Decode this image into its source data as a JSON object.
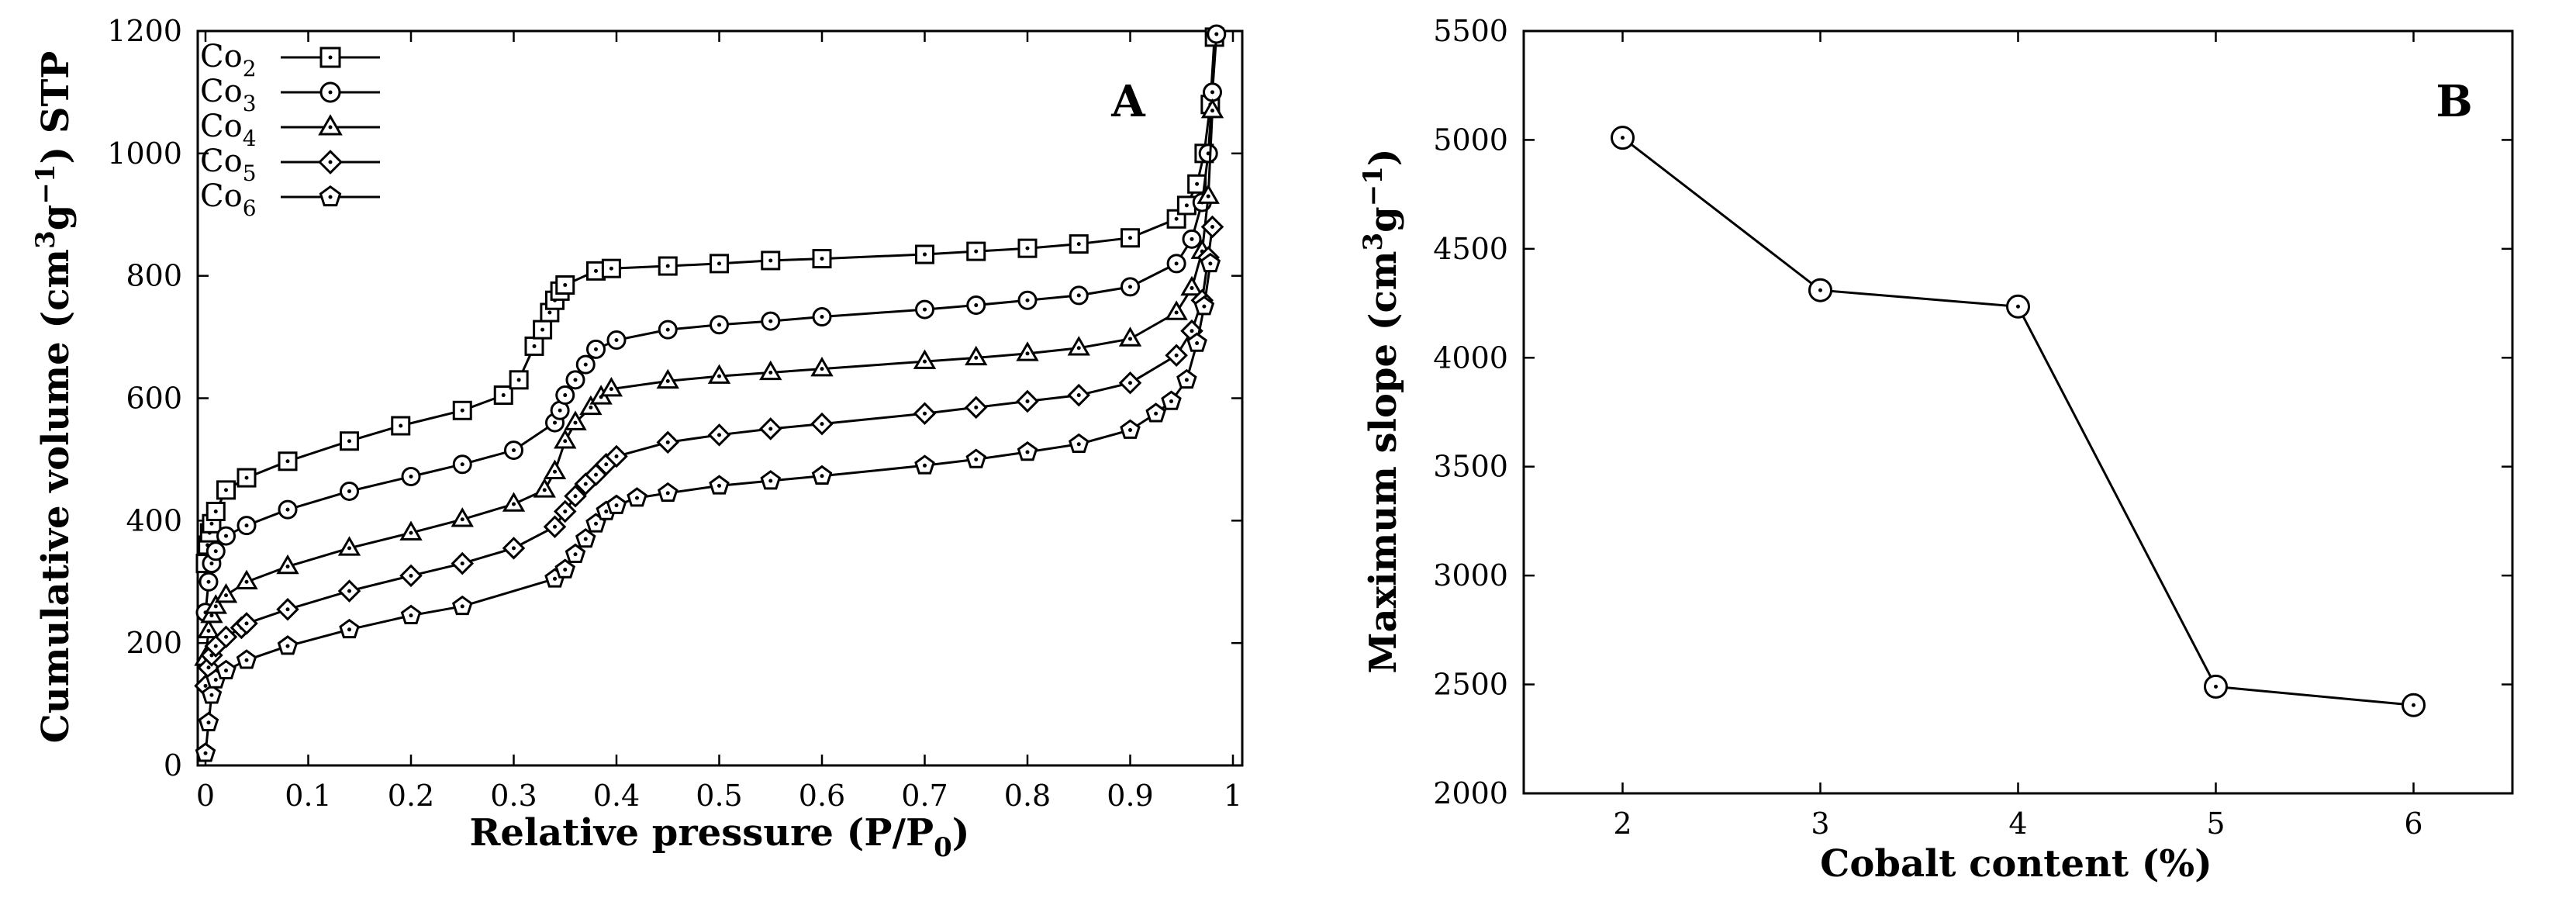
{
  "charts": {
    "A": {
      "panel_label": "A",
      "title_bits": {
        "y_pre": "Cumulative volume (cm",
        "y_sup1": "3",
        "y_mid": "g",
        "y_sup2": "−1",
        "y_post": ") STP",
        "x_pre": "Relative pressure (P/P",
        "x_sub": "0",
        "x_post": ")"
      },
      "x_ticks": [
        "0",
        "0.1",
        "0.2",
        "0.3",
        "0.4",
        "0.5",
        "0.6",
        "0.7",
        "0.8",
        "0.9",
        "1"
      ],
      "y_ticks": [
        "0",
        "200",
        "400",
        "600",
        "800",
        "1000",
        "1200"
      ]
    },
    "B": {
      "panel_label": "B",
      "title_bits": {
        "y_pre": "Maximum slope (cm",
        "y_sup1": "3",
        "y_mid": "g",
        "y_sup2": "−1",
        "y_post": ")",
        "x_full": "Cobalt content (%)"
      },
      "x_ticks": [
        "2",
        "3",
        "4",
        "5",
        "6"
      ],
      "y_ticks": [
        "2000",
        "2500",
        "3000",
        "3500",
        "4000",
        "4500",
        "5000",
        "5500"
      ]
    }
  },
  "chart_data": [
    {
      "type": "line",
      "panel": "A",
      "title": "",
      "xlabel": "Relative pressure (P/P0)",
      "ylabel": "Cumulative volume (cm3g−1) STP",
      "xlim": [
        0,
        1
      ],
      "ylim": [
        0,
        1200
      ],
      "legend_position": "top-left",
      "series": [
        {
          "name": "Co2",
          "sub": "2",
          "marker": "square",
          "x": [
            0,
            0.002,
            0.004,
            0.006,
            0.01,
            0.02,
            0.04,
            0.08,
            0.14,
            0.19,
            0.25,
            0.29,
            0.305,
            0.32,
            0.328,
            0.335,
            0.34,
            0.345,
            0.35,
            0.38,
            0.395,
            0.45,
            0.5,
            0.55,
            0.6,
            0.7,
            0.75,
            0.8,
            0.85,
            0.9,
            0.945,
            0.955,
            0.965,
            0.972,
            0.978,
            0.982
          ],
          "y": [
            330,
            360,
            380,
            395,
            415,
            450,
            470,
            497,
            530,
            555,
            580,
            605,
            630,
            685,
            712,
            740,
            760,
            775,
            785,
            808,
            812,
            816,
            820,
            825,
            828,
            835,
            840,
            845,
            852,
            862,
            893,
            915,
            950,
            1000,
            1080,
            1190
          ]
        },
        {
          "name": "Co3",
          "sub": "3",
          "marker": "circle",
          "x": [
            0,
            0.003,
            0.006,
            0.01,
            0.02,
            0.04,
            0.08,
            0.14,
            0.2,
            0.25,
            0.3,
            0.34,
            0.345,
            0.35,
            0.36,
            0.37,
            0.38,
            0.4,
            0.45,
            0.5,
            0.55,
            0.6,
            0.7,
            0.75,
            0.8,
            0.85,
            0.9,
            0.945,
            0.96,
            0.97,
            0.976,
            0.98,
            0.984
          ],
          "y": [
            250,
            300,
            330,
            350,
            375,
            392,
            418,
            448,
            472,
            492,
            515,
            560,
            580,
            605,
            630,
            655,
            680,
            695,
            712,
            720,
            726,
            733,
            745,
            752,
            760,
            768,
            782,
            820,
            860,
            920,
            1000,
            1100,
            1195
          ]
        },
        {
          "name": "Co4",
          "sub": "4",
          "marker": "triangle",
          "x": [
            0,
            0.003,
            0.006,
            0.01,
            0.02,
            0.04,
            0.08,
            0.14,
            0.2,
            0.25,
            0.3,
            0.33,
            0.34,
            0.35,
            0.36,
            0.375,
            0.385,
            0.395,
            0.45,
            0.5,
            0.55,
            0.6,
            0.7,
            0.75,
            0.8,
            0.85,
            0.9,
            0.945,
            0.96,
            0.97,
            0.976,
            0.98
          ],
          "y": [
            175,
            220,
            245,
            260,
            278,
            300,
            325,
            355,
            380,
            402,
            427,
            450,
            480,
            530,
            560,
            585,
            602,
            615,
            628,
            636,
            642,
            648,
            660,
            666,
            673,
            682,
            697,
            740,
            780,
            840,
            930,
            1070
          ]
        },
        {
          "name": "Co5",
          "sub": "5",
          "marker": "diamond",
          "x": [
            0,
            0.003,
            0.006,
            0.01,
            0.02,
            0.035,
            0.04,
            0.08,
            0.14,
            0.2,
            0.25,
            0.3,
            0.34,
            0.35,
            0.36,
            0.37,
            0.38,
            0.39,
            0.4,
            0.45,
            0.5,
            0.55,
            0.6,
            0.7,
            0.75,
            0.8,
            0.85,
            0.9,
            0.945,
            0.96,
            0.97,
            0.976,
            0.98
          ],
          "y": [
            130,
            160,
            180,
            195,
            210,
            225,
            232,
            255,
            285,
            310,
            330,
            355,
            390,
            415,
            440,
            460,
            475,
            492,
            505,
            528,
            540,
            550,
            558,
            575,
            585,
            595,
            605,
            625,
            670,
            710,
            760,
            830,
            880
          ]
        },
        {
          "name": "Co6",
          "sub": "6",
          "marker": "pentagon",
          "x": [
            0,
            0.003,
            0.006,
            0.01,
            0.02,
            0.04,
            0.08,
            0.14,
            0.2,
            0.25,
            0.34,
            0.35,
            0.36,
            0.37,
            0.38,
            0.39,
            0.4,
            0.42,
            0.45,
            0.5,
            0.55,
            0.6,
            0.7,
            0.75,
            0.8,
            0.85,
            0.9,
            0.925,
            0.94,
            0.955,
            0.965,
            0.972,
            0.978
          ],
          "y": [
            20,
            70,
            115,
            140,
            155,
            172,
            195,
            222,
            245,
            260,
            305,
            320,
            345,
            370,
            395,
            415,
            425,
            437,
            445,
            457,
            465,
            473,
            490,
            500,
            512,
            525,
            548,
            575,
            595,
            630,
            690,
            750,
            820
          ]
        }
      ]
    },
    {
      "type": "line",
      "panel": "B",
      "title": "",
      "xlabel": "Cobalt content (%)",
      "ylabel": "Maximum slope (cm3g−1)",
      "xlim": [
        1.5,
        6.5
      ],
      "ylim": [
        2000,
        5500
      ],
      "categories": [
        2,
        3,
        4,
        5,
        6
      ],
      "series": [
        {
          "name": "Maximum slope",
          "marker": "circle",
          "x": [
            2,
            3,
            4,
            5,
            6
          ],
          "y": [
            5010,
            4310,
            4235,
            2490,
            2405
          ]
        }
      ]
    }
  ]
}
